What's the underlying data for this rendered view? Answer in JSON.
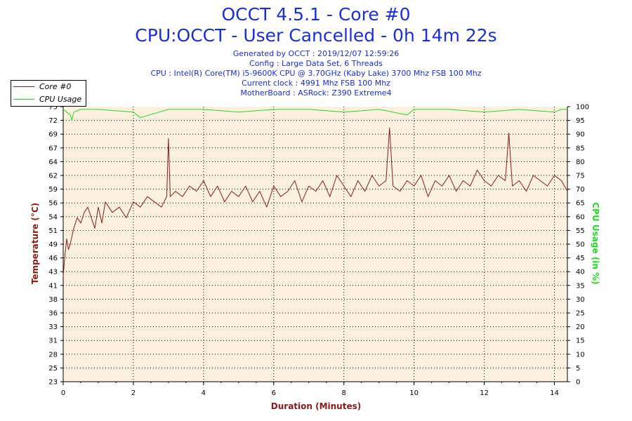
{
  "header": {
    "title": "OCCT 4.5.1 - Core #0",
    "subtitle": "CPU:OCCT - User Cancelled - 0h 14m 22s",
    "info_lines": [
      "Generated by OCCT : 2019/12/07 12:59:26",
      "Config : Large Data Set, 6 Threads",
      "CPU : Intel(R) Core(TM) i5-9600K CPU @ 3.70GHz (Kaby Lake) 3700 Mhz FSB 100 Mhz",
      "Current clock : 4991 Mhz FSB 100 Mhz",
      "MotherBoard : ASRock: Z390 Extreme4"
    ]
  },
  "legend": {
    "items": [
      {
        "label": "Core #0",
        "color": "#8b1a1a"
      },
      {
        "label": "CPU Usage",
        "color": "#22dd22"
      }
    ],
    "placement": "top-left"
  },
  "colors": {
    "plot_background": "#fbf1de",
    "temperature": "#8b1a1a",
    "cpu_usage": "#22dd22",
    "grid": "#000000",
    "text": "#1a2ee0"
  },
  "chart_data": {
    "type": "line",
    "xlabel": "Duration (Minutes)",
    "ylabel_left": "Temperature (°C)",
    "ylabel_right": "CPU Usage (in %)",
    "xlim": [
      0,
      14.37
    ],
    "ylim_left": [
      23,
      75
    ],
    "ylim_right": [
      0,
      100
    ],
    "x_ticks": [
      "0",
      "2",
      "4",
      "6",
      "8",
      "10",
      "12",
      "14"
    ],
    "y_left_ticks": [
      "23",
      "25",
      "28",
      "31",
      "33",
      "36",
      "38",
      "41",
      "43",
      "46",
      "49",
      "51",
      "54",
      "56",
      "59",
      "62",
      "64",
      "67",
      "69",
      "72",
      "75"
    ],
    "y_right_ticks": [
      "0",
      "5",
      "10",
      "15",
      "20",
      "25",
      "30",
      "35",
      "40",
      "45",
      "50",
      "55",
      "60",
      "65",
      "70",
      "75",
      "80",
      "85",
      "90",
      "95",
      "100"
    ],
    "grid": true,
    "series": [
      {
        "name": "Core #0",
        "axis": "left",
        "x": [
          0,
          0.05,
          0.1,
          0.15,
          0.2,
          0.3,
          0.4,
          0.5,
          0.6,
          0.7,
          0.8,
          0.9,
          1.0,
          1.1,
          1.2,
          1.4,
          1.6,
          1.8,
          2.0,
          2.2,
          2.4,
          2.6,
          2.8,
          2.95,
          3.0,
          3.05,
          3.2,
          3.4,
          3.6,
          3.8,
          4.0,
          4.2,
          4.4,
          4.6,
          4.8,
          5.0,
          5.2,
          5.4,
          5.6,
          5.8,
          6.0,
          6.2,
          6.4,
          6.6,
          6.8,
          7.0,
          7.2,
          7.4,
          7.6,
          7.8,
          8.0,
          8.2,
          8.4,
          8.6,
          8.8,
          9.0,
          9.2,
          9.3,
          9.4,
          9.6,
          9.8,
          10.0,
          10.2,
          10.4,
          10.6,
          10.8,
          11.0,
          11.2,
          11.4,
          11.6,
          11.8,
          12.0,
          12.2,
          12.4,
          12.6,
          12.7,
          12.8,
          13.0,
          13.2,
          13.4,
          13.6,
          13.8,
          14.0,
          14.2,
          14.37
        ],
        "values": [
          43,
          47,
          50,
          48,
          49,
          52,
          54,
          53,
          55,
          56,
          54,
          52,
          56,
          53,
          57,
          55,
          56,
          54,
          57,
          56,
          58,
          57,
          56,
          58,
          69,
          58,
          59,
          58,
          60,
          59,
          61,
          58,
          60,
          57,
          59,
          58,
          60,
          57,
          59,
          56,
          60,
          58,
          59,
          61,
          57,
          60,
          59,
          61,
          58,
          62,
          60,
          58,
          61,
          59,
          62,
          60,
          61,
          71,
          60,
          59,
          61,
          60,
          62,
          58,
          61,
          60,
          62,
          59,
          61,
          60,
          63,
          61,
          60,
          62,
          61,
          70,
          60,
          61,
          59,
          62,
          61,
          60,
          62,
          61,
          59
        ]
      },
      {
        "name": "CPU Usage",
        "axis": "right",
        "x": [
          0,
          0.1,
          0.2,
          0.25,
          0.3,
          0.5,
          1.0,
          2.0,
          2.2,
          3.0,
          4.0,
          5.0,
          6.0,
          7.0,
          8.0,
          9.0,
          9.8,
          10.0,
          11.0,
          12.0,
          13.0,
          14.0,
          14.2,
          14.37
        ],
        "values": [
          99,
          98,
          97,
          95,
          98,
          99,
          99,
          98,
          96,
          99,
          99,
          98,
          99,
          99,
          98,
          99,
          97,
          99,
          99,
          98,
          99,
          98,
          99,
          99
        ]
      }
    ]
  }
}
